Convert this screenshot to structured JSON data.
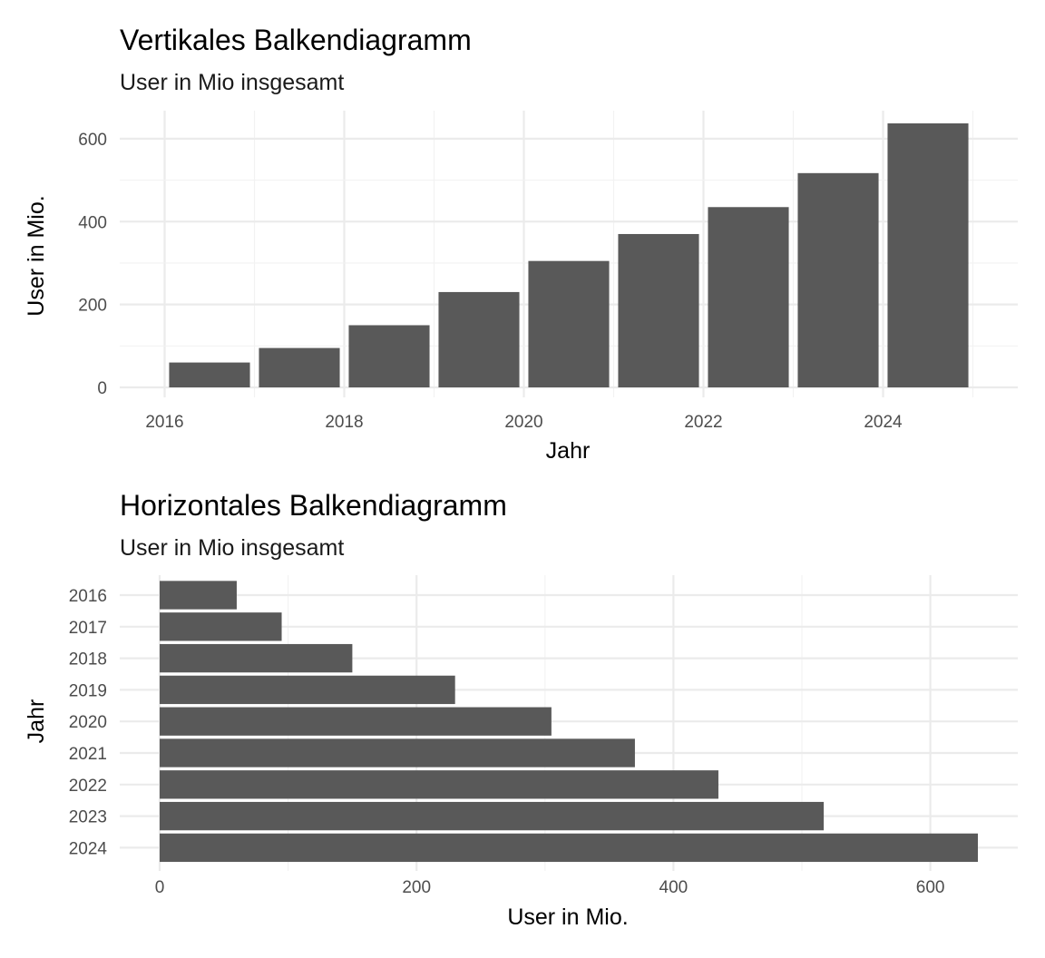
{
  "chart_data": [
    {
      "type": "bar",
      "orientation": "vertical",
      "title": "Vertikales Balkendiagramm",
      "subtitle": "User in Mio insgesamt",
      "xlabel": "Jahr",
      "ylabel": "User in Mio.",
      "categories": [
        "2016",
        "2017",
        "2018",
        "2019",
        "2020",
        "2021",
        "2022",
        "2023",
        "2024"
      ],
      "x": [
        2016.5,
        2017.5,
        2018.5,
        2019.5,
        2020.5,
        2021.5,
        2022.5,
        2023.5,
        2024.5
      ],
      "values": [
        60,
        95,
        150,
        230,
        305,
        370,
        435,
        517,
        637
      ],
      "xlim": [
        2016,
        2025
      ],
      "xticks": [
        2016,
        2018,
        2020,
        2022,
        2024
      ],
      "xtick_labels": [
        "2016",
        "2018",
        "2020",
        "2022",
        "2024"
      ],
      "ylim": [
        0,
        637
      ],
      "yticks": [
        0,
        200,
        400,
        600
      ],
      "ytick_labels": [
        "0",
        "200",
        "400",
        "600"
      ],
      "bar_color": "#595959",
      "grid": true,
      "legend": "none"
    },
    {
      "type": "bar",
      "orientation": "horizontal",
      "title": "Horizontales Balkendiagramm",
      "subtitle": "User in Mio insgesamt",
      "xlabel": "User in Mio.",
      "ylabel": "Jahr",
      "categories": [
        "2016",
        "2017",
        "2018",
        "2019",
        "2020",
        "2021",
        "2022",
        "2023",
        "2024"
      ],
      "values": [
        60,
        95,
        150,
        230,
        305,
        370,
        435,
        517,
        637
      ],
      "xlim": [
        0,
        637
      ],
      "xticks": [
        0,
        200,
        400,
        600
      ],
      "xtick_labels": [
        "0",
        "200",
        "400",
        "600"
      ],
      "bar_color": "#595959",
      "grid": true,
      "legend": "none"
    }
  ]
}
